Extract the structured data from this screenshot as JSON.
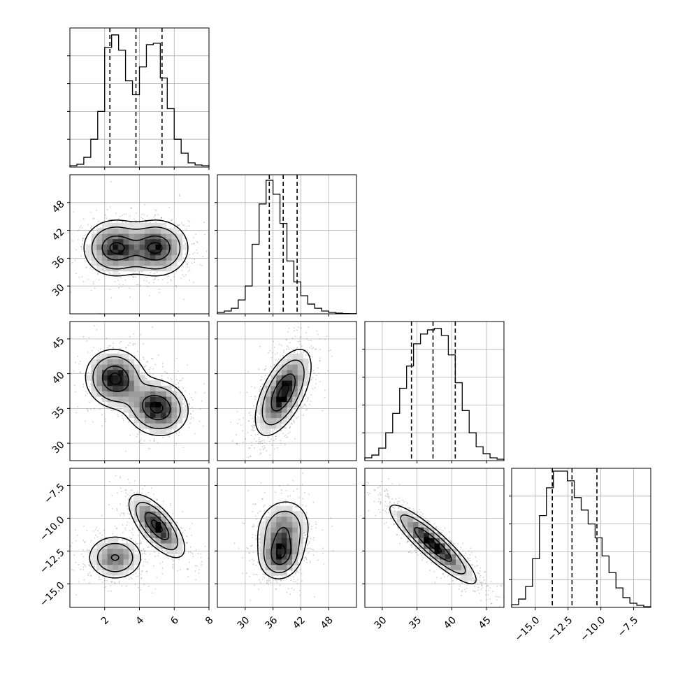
{
  "chart_data": {
    "type": "corner",
    "grid": true,
    "parameters": [
      {
        "range": [
          0,
          8
        ],
        "ticks": [
          2,
          4,
          6,
          8
        ],
        "tick_labels": [
          "2",
          "4",
          "6",
          "8"
        ],
        "quantiles": [
          2.3,
          3.8,
          5.3
        ]
      },
      {
        "range": [
          24,
          54
        ],
        "ticks": [
          30,
          36,
          42,
          48
        ],
        "tick_labels": [
          "30",
          "36",
          "42",
          "48"
        ],
        "quantiles": [
          35.2,
          38.2,
          41.2
        ]
      },
      {
        "range": [
          27.5,
          47.5
        ],
        "ticks": [
          30,
          35,
          40,
          45
        ],
        "tick_labels": [
          "30",
          "35",
          "40",
          "45"
        ],
        "quantiles": [
          34.2,
          37.3,
          40.5
        ]
      },
      {
        "range": [
          -16.8,
          -6.2
        ],
        "ticks": [
          -15,
          -12.5,
          -10,
          -7.5
        ],
        "tick_labels": [
          "−15.0",
          "−12.5",
          "−10.0",
          "−7.5"
        ],
        "quantiles": [
          -13.7,
          -12.2,
          -10.3
        ]
      }
    ],
    "hist_bins": 20,
    "histograms": [
      [
        0.01,
        0.02,
        0.07,
        0.2,
        0.4,
        0.86,
        0.95,
        0.84,
        0.62,
        0.52,
        0.72,
        0.88,
        0.89,
        0.64,
        0.42,
        0.2,
        0.1,
        0.03,
        0.015,
        0.01
      ],
      [
        0.01,
        0.02,
        0.04,
        0.1,
        0.2,
        0.5,
        0.79,
        0.96,
        0.86,
        0.65,
        0.38,
        0.23,
        0.13,
        0.07,
        0.04,
        0.02,
        0.01,
        0.005,
        0.002,
        0.001
      ],
      [
        0.02,
        0.04,
        0.09,
        0.2,
        0.34,
        0.52,
        0.68,
        0.84,
        0.91,
        0.94,
        0.95,
        0.9,
        0.76,
        0.56,
        0.36,
        0.2,
        0.1,
        0.05,
        0.02,
        0.01
      ],
      [
        0.02,
        0.06,
        0.15,
        0.35,
        0.66,
        0.86,
        0.98,
        0.98,
        0.91,
        0.79,
        0.7,
        0.6,
        0.5,
        0.37,
        0.25,
        0.14,
        0.07,
        0.03,
        0.015,
        0.005
      ]
    ],
    "hist_ylim": [
      0,
      1
    ],
    "pair_components": [
      {
        "x": 1,
        "y": 0,
        "components": [
          {
            "mx": 2.6,
            "my": 38.2,
            "sx": 0.9,
            "sy": 3,
            "rho": 0,
            "w": 0.5
          },
          {
            "mx": 5.0,
            "my": 38.2,
            "sx": 0.9,
            "sy": 3,
            "rho": 0,
            "w": 0.5
          }
        ]
      },
      {
        "x": 2,
        "y": 0,
        "components": [
          {
            "mx": 2.6,
            "my": 39.3,
            "sx": 0.85,
            "sy": 2.1,
            "rho": -0.05,
            "w": 0.5
          },
          {
            "mx": 5.0,
            "my": 35.1,
            "sx": 0.9,
            "sy": 2.0,
            "rho": -0.1,
            "w": 0.5
          }
        ]
      },
      {
        "x": 3,
        "y": 0,
        "components": [
          {
            "mx": 2.6,
            "my": -13.0,
            "sx": 0.8,
            "sy": 0.85,
            "rho": 0,
            "w": 0.5
          },
          {
            "mx": 5.0,
            "my": -10.6,
            "sx": 0.8,
            "sy": 1.2,
            "rho": -0.7,
            "w": 0.5
          }
        ]
      },
      {
        "x": 2,
        "y": 1,
        "components": [
          {
            "mx": 38.2,
            "my": 37.3,
            "sx": 3,
            "sy": 3.1,
            "rho": 0.6,
            "w": 1
          }
        ]
      },
      {
        "x": 3,
        "y": 1,
        "components": [
          {
            "mx": 37.6,
            "my": -12.9,
            "sx": 2.3,
            "sy": 0.9,
            "rho": 0.1,
            "w": 0.55
          },
          {
            "mx": 38.2,
            "my": -10.9,
            "sx": 3.0,
            "sy": 1.2,
            "rho": 0.1,
            "w": 0.45
          }
        ]
      },
      {
        "x": 3,
        "y": 2,
        "components": [
          {
            "mx": 37.3,
            "my": -12.0,
            "sx": 3.1,
            "sy": 1.5,
            "rho": -0.9,
            "w": 1
          }
        ]
      }
    ],
    "contour_levels": [
      0.39,
      0.86,
      1.5,
      2.0
    ]
  }
}
